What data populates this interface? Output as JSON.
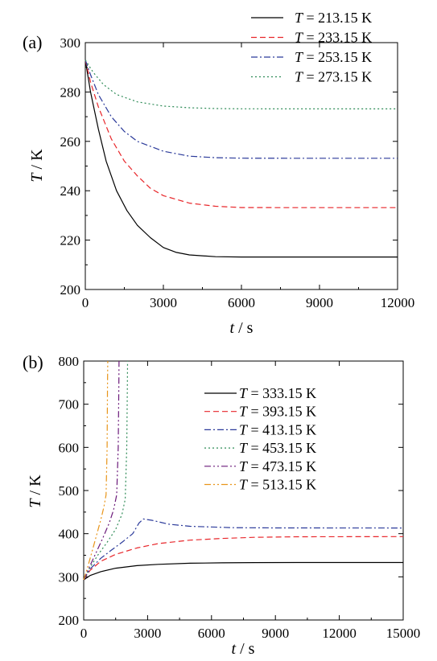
{
  "chart_data": [
    {
      "type": "line",
      "panel_label": "(a)",
      "xlabel_italic": "t",
      "xlabel_rest": " / s",
      "ylabel_italic": "T",
      "ylabel_rest": " / K",
      "xlim": [
        0,
        12000
      ],
      "ylim": [
        200,
        300
      ],
      "xticks": [
        0,
        3000,
        6000,
        9000,
        12000
      ],
      "yticks": [
        200,
        220,
        240,
        260,
        280,
        300
      ],
      "xtick_labels": [
        "0",
        "3000",
        "6000",
        "9000",
        "12000"
      ],
      "ytick_labels": [
        "200",
        "220",
        "240",
        "260",
        "280",
        "300"
      ],
      "grid": false,
      "legend_position": "top-right",
      "legend_prefix": "T",
      "series": [
        {
          "name": "= 213.15 K",
          "color": "#000000",
          "dash": "solid",
          "x": [
            0,
            200,
            500,
            800,
            1200,
            1600,
            2000,
            2500,
            3000,
            3500,
            4000,
            5000,
            6000,
            8000,
            12000
          ],
          "y": [
            293,
            280,
            265,
            252,
            240,
            232,
            226,
            221,
            217,
            215,
            214,
            213.3,
            213.15,
            213.15,
            213.15
          ]
        },
        {
          "name": "= 233.15 K",
          "color": "#e8262a",
          "dash": "dashed",
          "x": [
            0,
            200,
            500,
            1000,
            1500,
            2000,
            2500,
            3000,
            4000,
            5000,
            6000,
            8000,
            12000
          ],
          "y": [
            293,
            284,
            274,
            261,
            252,
            246,
            241,
            238,
            235,
            233.7,
            233.2,
            233.15,
            233.15
          ]
        },
        {
          "name": "= 253.15 K",
          "color": "#2b3a9a",
          "dash": "dashdot",
          "x": [
            0,
            200,
            500,
            1000,
            1500,
            2000,
            3000,
            4000,
            5000,
            6000,
            8000,
            12000
          ],
          "y": [
            293,
            287,
            279,
            270,
            264,
            260,
            256,
            254,
            253.4,
            253.2,
            253.15,
            253.15
          ]
        },
        {
          "name": "= 273.15 K",
          "color": "#2e8b57",
          "dash": "dotted",
          "x": [
            0,
            300,
            700,
            1200,
            2000,
            3000,
            4000,
            5000,
            6000,
            8000,
            12000
          ],
          "y": [
            293,
            288,
            283,
            279,
            276,
            274.3,
            273.6,
            273.3,
            273.2,
            273.15,
            273.15
          ]
        }
      ]
    },
    {
      "type": "line",
      "panel_label": "(b)",
      "xlabel_italic": "t",
      "xlabel_rest": " / s",
      "ylabel_italic": "T",
      "ylabel_rest": " / K",
      "xlim": [
        0,
        15000
      ],
      "ylim": [
        200,
        800
      ],
      "xticks": [
        0,
        3000,
        6000,
        9000,
        12000,
        15000
      ],
      "yticks": [
        200,
        300,
        400,
        500,
        600,
        700,
        800
      ],
      "xtick_labels": [
        "0",
        "3000",
        "6000",
        "9000",
        "12000",
        "15000"
      ],
      "ytick_labels": [
        "200",
        "300",
        "400",
        "500",
        "600",
        "700",
        "800"
      ],
      "grid": false,
      "legend_position": "top-right",
      "legend_prefix": "T",
      "series": [
        {
          "name": "=  333.15 K",
          "color": "#000000",
          "dash": "solid",
          "x": [
            0,
            300,
            800,
            1500,
            2500,
            3500,
            5000,
            6500,
            8000,
            10000,
            15000
          ],
          "y": [
            293,
            303,
            312,
            320,
            326,
            329,
            331.5,
            332.5,
            333,
            333.15,
            333.15
          ]
        },
        {
          "name": "=  393.15 K",
          "color": "#e8262a",
          "dash": "dashed",
          "x": [
            0,
            300,
            800,
            1500,
            2500,
            3500,
            5000,
            6500,
            8000,
            10000,
            15000
          ],
          "y": [
            293,
            315,
            336,
            352,
            367,
            377,
            385,
            389,
            391.5,
            392.8,
            393.15
          ]
        },
        {
          "name": "=  413.15 K",
          "color": "#2b3a9a",
          "dash": "dashdot",
          "x": [
            0,
            300,
            800,
            1300,
            1800,
            2300,
            2600,
            2800,
            3200,
            4000,
            5000,
            7000,
            9000,
            15000
          ],
          "y": [
            293,
            318,
            343,
            362,
            380,
            400,
            425,
            434,
            431,
            422,
            417,
            414,
            413.3,
            413.15
          ]
        },
        {
          "name": "=  453.15 K",
          "color": "#2e8b57",
          "dash": "dotted",
          "x": [
            0,
            300,
            700,
            1100,
            1500,
            1800,
            1950,
            2020,
            2050,
            2060
          ],
          "y": [
            293,
            322,
            353,
            380,
            410,
            445,
            480,
            600,
            750,
            800
          ]
        },
        {
          "name": "=  473.15 K",
          "color": "#6b1a7a",
          "dash": "dashdotdot",
          "x": [
            0,
            300,
            600,
            900,
            1200,
            1400,
            1550,
            1620,
            1650,
            1660
          ],
          "y": [
            293,
            326,
            358,
            390,
            425,
            455,
            490,
            600,
            750,
            800
          ]
        },
        {
          "name": "=  513.15 K",
          "color": "#e8951a",
          "dash": "dashdotdot",
          "x": [
            0,
            200,
            400,
            600,
            800,
            950,
            1050,
            1100,
            1120,
            1130
          ],
          "y": [
            293,
            325,
            360,
            396,
            432,
            462,
            490,
            600,
            750,
            800
          ]
        }
      ]
    }
  ]
}
